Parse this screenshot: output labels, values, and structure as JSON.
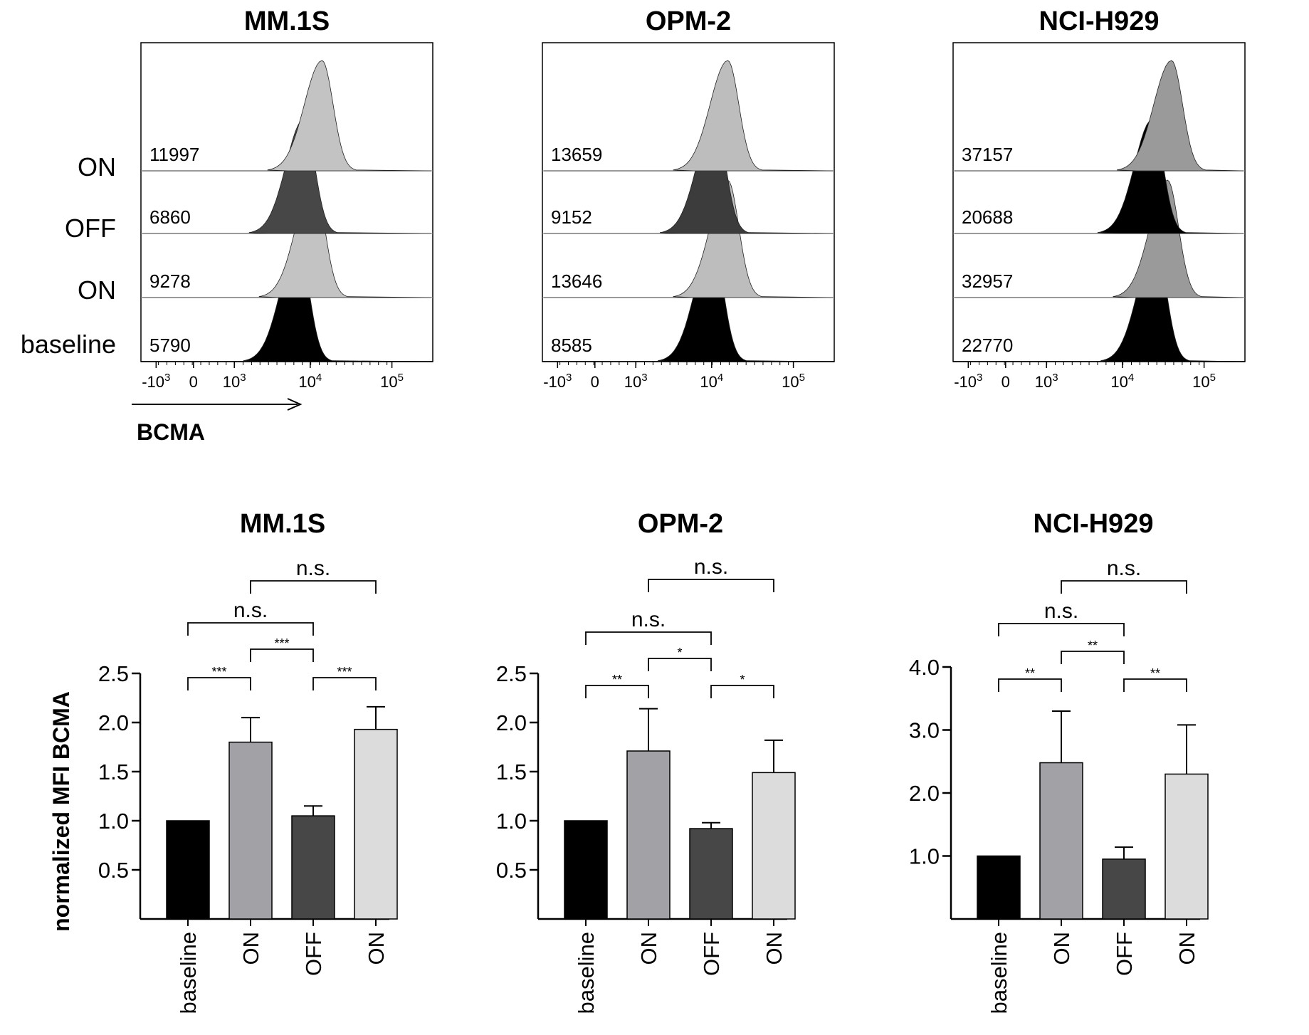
{
  "histogram_x_axis": {
    "label": "BCMA",
    "ticks": [
      "-10^3",
      "0",
      "10^3",
      "10^4",
      "10^5"
    ]
  },
  "histogram_row_labels": [
    "ON",
    "OFF",
    "ON",
    "baseline"
  ],
  "bar_y_axis_label": "normalized MFI BCMA",
  "colors": {
    "baseline": "#000000",
    "ON_first": "#a2a1a6",
    "OFF": "#474747",
    "ON_second": "#dcdcdc"
  },
  "chart_data": [
    {
      "type": "histogram",
      "title": "MM.1S",
      "xlabel": "BCMA",
      "x_scale": "biexponential",
      "rows": [
        {
          "condition": "ON",
          "mfi": "11997"
        },
        {
          "condition": "OFF",
          "mfi": "6860"
        },
        {
          "condition": "ON",
          "mfi": "9278"
        },
        {
          "condition": "baseline",
          "mfi": "5790"
        }
      ]
    },
    {
      "type": "histogram",
      "title": "OPM-2",
      "x_scale": "biexponential",
      "rows": [
        {
          "condition": "ON",
          "mfi": "13659"
        },
        {
          "condition": "OFF",
          "mfi": "9152"
        },
        {
          "condition": "ON",
          "mfi": "13646"
        },
        {
          "condition": "baseline",
          "mfi": "8585"
        }
      ]
    },
    {
      "type": "histogram",
      "title": "NCI-H929",
      "x_scale": "biexponential",
      "rows": [
        {
          "condition": "ON",
          "mfi": "37157"
        },
        {
          "condition": "OFF",
          "mfi": "20688"
        },
        {
          "condition": "ON",
          "mfi": "32957"
        },
        {
          "condition": "baseline",
          "mfi": "22770"
        }
      ]
    },
    {
      "type": "bar",
      "title": "MM.1S",
      "ylabel": "normalized MFI BCMA",
      "categories": [
        "baseline",
        "ON",
        "OFF",
        "ON"
      ],
      "values": [
        1.0,
        1.8,
        1.05,
        1.93
      ],
      "errors": [
        0,
        0.25,
        0.1,
        0.23
      ],
      "ylim": [
        0,
        2.5
      ],
      "yticks": [
        "0.5",
        "1.0",
        "1.5",
        "2.0",
        "2.5"
      ],
      "comparisons": [
        {
          "from": 0,
          "to": 1,
          "label": "***"
        },
        {
          "from": 1,
          "to": 2,
          "label": "***"
        },
        {
          "from": 2,
          "to": 3,
          "label": "***"
        },
        {
          "from": 0,
          "to": 2,
          "label": "n.s."
        },
        {
          "from": 1,
          "to": 3,
          "label": "n.s."
        }
      ]
    },
    {
      "type": "bar",
      "title": "OPM-2",
      "categories": [
        "baseline",
        "ON",
        "OFF",
        "ON"
      ],
      "values": [
        1.0,
        1.71,
        0.92,
        1.49
      ],
      "errors": [
        0,
        0.43,
        0.06,
        0.33
      ],
      "ylim": [
        0,
        2.5
      ],
      "yticks": [
        "0.5",
        "1.0",
        "1.5",
        "2.0",
        "2.5"
      ],
      "comparisons": [
        {
          "from": 0,
          "to": 1,
          "label": "**"
        },
        {
          "from": 1,
          "to": 2,
          "label": "*"
        },
        {
          "from": 2,
          "to": 3,
          "label": "*"
        },
        {
          "from": 0,
          "to": 2,
          "label": "n.s."
        },
        {
          "from": 1,
          "to": 3,
          "label": "n.s."
        }
      ]
    },
    {
      "type": "bar",
      "title": "NCI-H929",
      "categories": [
        "baseline",
        "ON",
        "OFF",
        "ON"
      ],
      "values": [
        1.0,
        2.48,
        0.95,
        2.3
      ],
      "errors": [
        0,
        0.82,
        0.19,
        0.78
      ],
      "ylim": [
        0,
        4.0
      ],
      "yticks": [
        "1.0",
        "2.0",
        "3.0",
        "4.0"
      ],
      "comparisons": [
        {
          "from": 0,
          "to": 1,
          "label": "**"
        },
        {
          "from": 1,
          "to": 2,
          "label": "**"
        },
        {
          "from": 2,
          "to": 3,
          "label": "**"
        },
        {
          "from": 0,
          "to": 2,
          "label": "n.s."
        },
        {
          "from": 1,
          "to": 3,
          "label": "n.s."
        }
      ]
    }
  ]
}
